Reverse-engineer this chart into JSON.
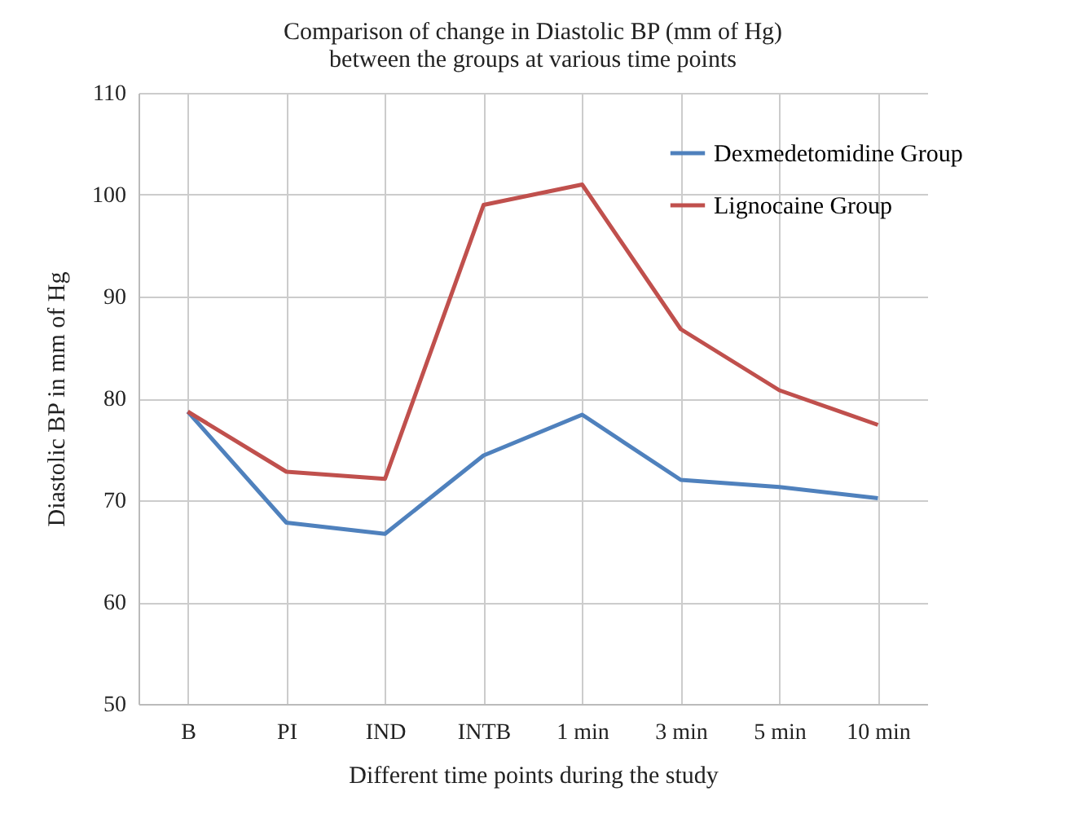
{
  "chart_data": {
    "type": "line",
    "title": [
      "Comparison of change in Diastolic BP  (mm of Hg)",
      "between the groups at various time points"
    ],
    "xlabel": "Different time points during the study",
    "ylabel": "Diastolic BP  in mm of Hg",
    "categories": [
      "B",
      "PI",
      "IND",
      "INTB",
      "1 min",
      "3 min",
      "5 min",
      "10 min"
    ],
    "series": [
      {
        "name": "Dexmedetomidine Group",
        "color": "#4f81bd",
        "values": [
          78.7,
          67.8,
          66.7,
          74.4,
          78.4,
          72.0,
          71.3,
          70.2
        ]
      },
      {
        "name": "Lignocaine Group",
        "color": "#c0504d",
        "values": [
          78.7,
          72.8,
          72.1,
          99.0,
          101.0,
          86.8,
          80.8,
          77.4
        ]
      }
    ],
    "ylim": [
      50,
      110
    ],
    "yticks": [
      50,
      60,
      70,
      80,
      90,
      100,
      110
    ],
    "grid": true,
    "legend": "top right",
    "marker": "none",
    "line_style": "solid"
  }
}
